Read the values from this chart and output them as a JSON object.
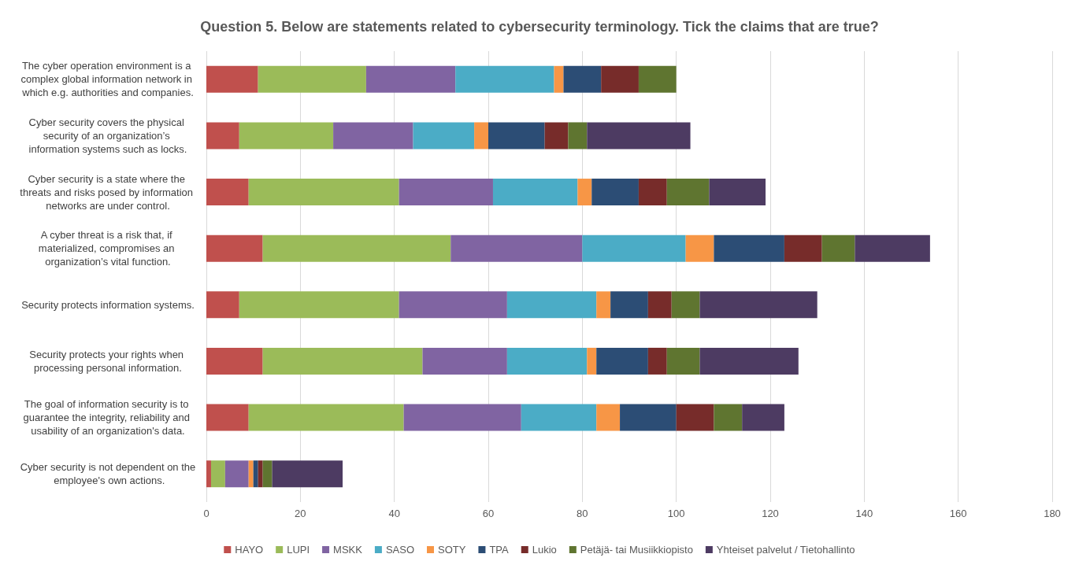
{
  "chart_data": {
    "type": "bar",
    "orientation": "horizontal",
    "stacked": true,
    "title": "Question 5. Below are statements related to cybersecurity terminology. Tick the claims that are true?",
    "categories": [
      "The cyber operation environment is a complex global information network in which e.g. authorities and companies.",
      "Cyber security covers the physical security of an organization’s information systems such as locks.",
      "Cyber security is a state where the threats and risks posed by information networks are under control.",
      "A cyber threat is a risk that, if materialized, compromises an organization’s vital function.",
      "Security protects information systems.",
      "Security protects your rights when processing personal information.",
      "The goal of information security is to guarantee the integrity, reliability and usability of an organization's data.",
      "Cyber security is not dependent on the employee's own actions."
    ],
    "series": [
      {
        "name": "HAYO",
        "color": "#c0504d",
        "values": [
          11,
          7,
          9,
          12,
          7,
          12,
          9,
          1
        ]
      },
      {
        "name": "LUPI",
        "color": "#9bbb59",
        "values": [
          23,
          20,
          32,
          40,
          34,
          34,
          33,
          3
        ]
      },
      {
        "name": "MSKK",
        "color": "#8064a2",
        "values": [
          19,
          17,
          20,
          28,
          23,
          18,
          25,
          5
        ]
      },
      {
        "name": "SASO",
        "color": "#4bacc6",
        "values": [
          21,
          13,
          18,
          22,
          19,
          17,
          16,
          0
        ]
      },
      {
        "name": "SOTY",
        "color": "#f79646",
        "values": [
          2,
          3,
          3,
          6,
          3,
          2,
          5,
          1
        ]
      },
      {
        "name": "TPA",
        "color": "#2c4d75",
        "values": [
          8,
          12,
          10,
          15,
          8,
          11,
          12,
          1
        ]
      },
      {
        "name": "Lukio",
        "color": "#772c2a",
        "values": [
          8,
          5,
          6,
          8,
          5,
          4,
          8,
          1
        ]
      },
      {
        "name": "Petäjä- tai Musiikkiopisto",
        "color": "#5f7530",
        "values": [
          8,
          4,
          9,
          7,
          6,
          7,
          6,
          2
        ]
      },
      {
        "name": "Yhteiset palvelut / Tietohallinto",
        "color": "#4d3b62",
        "values": [
          0,
          22,
          12,
          16,
          25,
          21,
          9,
          15
        ]
      }
    ],
    "xlim": [
      0,
      180
    ],
    "xticks": [
      0,
      20,
      40,
      60,
      80,
      100,
      120,
      140,
      160,
      180
    ],
    "grid": "x",
    "legend": "bottom"
  }
}
